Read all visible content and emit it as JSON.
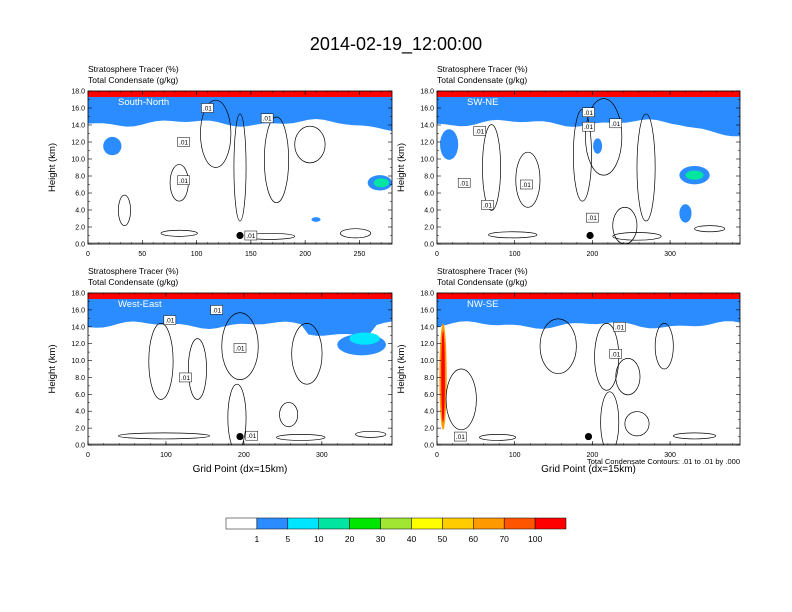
{
  "figure": {
    "title": "2014-02-19_12:00:00",
    "footnote": "Total Condensate Contours: .01 to .01 by .000"
  },
  "colorbar": {
    "colors": [
      "#ffffff",
      "#2a8cff",
      "#00e6ff",
      "#00e6a0",
      "#00e600",
      "#a0e632",
      "#ffff00",
      "#ffcc00",
      "#ff9900",
      "#ff5500",
      "#ff0000"
    ],
    "labels": [
      "1",
      "5",
      "10",
      "20",
      "30",
      "40",
      "50",
      "60",
      "70",
      "100"
    ]
  },
  "chart_data": [
    {
      "type": "heatmap",
      "panel": "South-North",
      "title_line1": "Stratosphere Tracer   (%)",
      "title_line2": "Total Condensate   (g/kg)",
      "ylabel": "Height (km)",
      "xlabel": "",
      "xlim": [
        0,
        280
      ],
      "ylim": [
        0,
        18
      ],
      "xticks": [
        "0",
        "50",
        "100",
        "150",
        "200",
        "250"
      ],
      "xtick_values": [
        0,
        50,
        100,
        150,
        200,
        250
      ],
      "yticks": [
        "0.0",
        "2.0",
        "4.0",
        "6.0",
        "8.0",
        "10.0",
        "12.0",
        "14.0",
        "16.0",
        "18.0"
      ],
      "contour_labels": [
        {
          "text": ".01",
          "x": 110,
          "y": 16.0
        },
        {
          "text": ".01",
          "x": 165,
          "y": 14.8
        },
        {
          "text": ".01",
          "x": 88,
          "y": 12.0
        },
        {
          "text": ".01",
          "x": 88,
          "y": 7.5
        },
        {
          "text": ".01",
          "x": 150,
          "y": 1.0
        }
      ],
      "marker": {
        "x": 140,
        "y": 1.0
      }
    },
    {
      "type": "heatmap",
      "panel": "SW-NE",
      "title_line1": "Stratosphere Tracer   (%)",
      "title_line2": "Total Condensate   (g/kg)",
      "ylabel": "Height (km)",
      "xlabel": "",
      "xlim": [
        0,
        390
      ],
      "ylim": [
        0,
        18
      ],
      "xticks": [
        "0",
        "100",
        "200",
        "300"
      ],
      "xtick_values": [
        0,
        100,
        200,
        300
      ],
      "yticks": [
        "0.0",
        "2.0",
        "4.0",
        "6.0",
        "8.0",
        "10.0",
        "12.0",
        "14.0",
        "16.0",
        "18.0"
      ],
      "contour_labels": [
        {
          "text": ".01",
          "x": 195,
          "y": 15.5
        },
        {
          "text": ".01",
          "x": 195,
          "y": 13.8
        },
        {
          "text": ".01",
          "x": 230,
          "y": 14.2
        },
        {
          "text": ".01",
          "x": 55,
          "y": 13.3
        },
        {
          "text": ".01",
          "x": 35,
          "y": 7.2
        },
        {
          "text": ".01",
          "x": 115,
          "y": 7.0
        },
        {
          "text": ".01",
          "x": 65,
          "y": 4.6
        },
        {
          "text": ".01",
          "x": 200,
          "y": 3.1
        }
      ],
      "marker": {
        "x": 197,
        "y": 1.0
      }
    },
    {
      "type": "heatmap",
      "panel": "West-East",
      "title_line1": "Stratosphere Tracer   (%)",
      "title_line2": "Total Condensate   (g/kg)",
      "ylabel": "Height (km)",
      "xlabel": "Grid Point (dx=15km)",
      "xlim": [
        0,
        390
      ],
      "ylim": [
        0,
        18
      ],
      "xticks": [
        "0",
        "100",
        "200",
        "300"
      ],
      "xtick_values": [
        0,
        100,
        200,
        300
      ],
      "yticks": [
        "0.0",
        "2.0",
        "4.0",
        "6.0",
        "8.0",
        "10.0",
        "12.0",
        "14.0",
        "16.0",
        "18.0"
      ],
      "contour_labels": [
        {
          "text": ".01",
          "x": 105,
          "y": 14.8
        },
        {
          "text": ".01",
          "x": 165,
          "y": 16.0
        },
        {
          "text": ".01",
          "x": 195,
          "y": 11.5
        },
        {
          "text": ".01",
          "x": 125,
          "y": 8.0
        },
        {
          "text": ".01",
          "x": 210,
          "y": 1.1
        }
      ],
      "marker": {
        "x": 195,
        "y": 1.0
      }
    },
    {
      "type": "heatmap",
      "panel": "NW-SE",
      "title_line1": "Stratosphere Tracer   (%)",
      "title_line2": "Total Condensate   (g/kg)",
      "ylabel": "Height (km)",
      "xlabel": "Grid Point (dx=15km)",
      "xlim": [
        0,
        390
      ],
      "ylim": [
        0,
        18
      ],
      "xticks": [
        "0",
        "100",
        "200",
        "300"
      ],
      "xtick_values": [
        0,
        100,
        200,
        300
      ],
      "yticks": [
        "0.0",
        "2.0",
        "4.0",
        "6.0",
        "8.0",
        "10.0",
        "12.0",
        "14.0",
        "16.0",
        "18.0"
      ],
      "contour_labels": [
        {
          "text": ".01",
          "x": 235,
          "y": 14.0
        },
        {
          "text": ".01",
          "x": 230,
          "y": 10.8
        },
        {
          "text": ".01",
          "x": 30,
          "y": 1.0
        }
      ],
      "marker": {
        "x": 195,
        "y": 1.0
      }
    }
  ]
}
